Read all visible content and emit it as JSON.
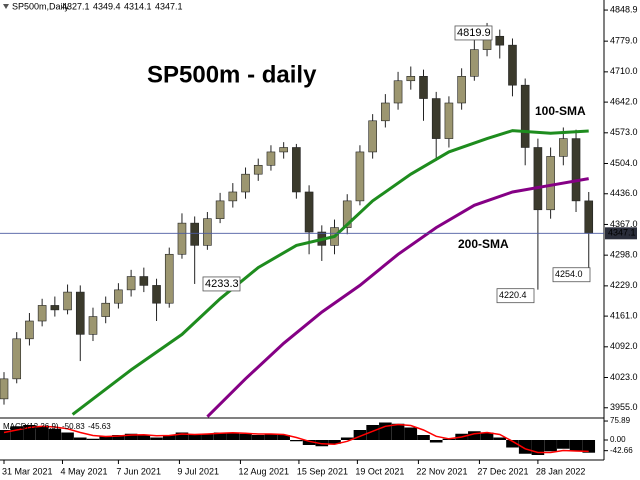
{
  "chart_data": [
    {
      "type": "candlestick",
      "title": "SP500m - daily",
      "symbol": "SP500m,Daily",
      "ohlc": [
        4327.1,
        4349.4,
        4314.1,
        4347.1
      ],
      "last_price": 4347.1,
      "x": [
        0,
        5,
        10,
        15,
        20,
        25,
        30,
        35,
        40,
        45,
        50,
        55,
        60,
        65,
        70,
        75,
        80,
        85,
        90,
        95,
        100,
        105,
        110,
        115,
        120,
        125,
        130,
        135,
        140,
        145,
        150,
        155,
        160,
        165,
        170,
        175,
        180,
        185,
        190,
        195,
        200,
        205,
        210,
        215,
        220,
        225,
        230
      ],
      "open": [
        3975,
        4020,
        4110,
        4150,
        4185,
        4175,
        4215,
        4120,
        4160,
        4190,
        4220,
        4250,
        4230,
        4190,
        4300,
        4370,
        4320,
        4380,
        4420,
        4440,
        4480,
        4500,
        4530,
        4540,
        4440,
        4350,
        4320,
        4360,
        4420,
        4530,
        4600,
        4640,
        4690,
        4700,
        4650,
        4560,
        4640,
        4700,
        4760,
        4790,
        4770,
        4680,
        4540,
        4400,
        4520,
        4560,
        4420
      ],
      "high": [
        4035,
        4125,
        4168,
        4200,
        4205,
        4232,
        4230,
        4180,
        4205,
        4235,
        4265,
        4270,
        4245,
        4315,
        4392,
        4385,
        4395,
        4438,
        4460,
        4495,
        4515,
        4545,
        4552,
        4548,
        4455,
        4365,
        4378,
        4435,
        4545,
        4615,
        4660,
        4710,
        4722,
        4715,
        4665,
        4655,
        4718,
        4790,
        4819.9,
        4805,
        4785,
        4695,
        4560,
        4540,
        4585,
        4580,
        4440
      ],
      "low": [
        3962,
        4010,
        4095,
        4138,
        4160,
        4165,
        4060,
        4105,
        4145,
        4178,
        4205,
        4215,
        4150,
        4180,
        4290,
        4233.3,
        4310,
        4370,
        4405,
        4425,
        4465,
        4488,
        4515,
        4425,
        4300,
        4285,
        4300,
        4345,
        4410,
        4515,
        4585,
        4625,
        4670,
        4600,
        4510,
        4540,
        4625,
        4690,
        4745,
        4740,
        4655,
        4500,
        4220.4,
        4380,
        4500,
        4395,
        4254.0
      ],
      "close": [
        4020,
        4110,
        4150,
        4185,
        4175,
        4215,
        4120,
        4160,
        4190,
        4220,
        4250,
        4230,
        4190,
        4300,
        4370,
        4320,
        4380,
        4420,
        4440,
        4480,
        4500,
        4530,
        4540,
        4440,
        4350,
        4320,
        4360,
        4420,
        4530,
        4600,
        4640,
        4690,
        4700,
        4650,
        4560,
        4640,
        4700,
        4760,
        4790,
        4770,
        4680,
        4540,
        4400,
        4520,
        4560,
        4420,
        4347.1
      ],
      "up_color": "#9c9670",
      "down_color": "#3b3a2c",
      "xlim": [
        0,
        236
      ],
      "ylim": [
        3932,
        4867
      ],
      "xticks": [
        {
          "value": 0,
          "label": "31 Mar 2021"
        },
        {
          "value": 23,
          "label": "4 May 2021"
        },
        {
          "value": 45,
          "label": "7 Jun 2021"
        },
        {
          "value": 69,
          "label": "9 Jul 2021"
        },
        {
          "value": 93,
          "label": "12 Aug 2021"
        },
        {
          "value": 116,
          "label": "15 Sep 2021"
        },
        {
          "value": 139,
          "label": "19 Oct 2021"
        },
        {
          "value": 163,
          "label": "22 Nov 2021"
        },
        {
          "value": 187,
          "label": "27 Dec 2021"
        },
        {
          "value": 210,
          "label": "28 Jan 2022"
        }
      ],
      "yticks": [
        4848.9,
        {
          "value": 4779,
          "label": "4779.0"
        },
        {
          "value": 4710,
          "label": "4710.0"
        },
        {
          "value": 4642,
          "label": "4642.0"
        },
        {
          "value": 4573,
          "label": "4573.0"
        },
        {
          "value": 4504,
          "label": "4504.0"
        },
        {
          "value": 4436,
          "label": "4436.0"
        },
        {
          "value": 4367,
          "label": "4367.0"
        },
        {
          "value": 4298,
          "label": "4298.0"
        },
        {
          "value": 4229,
          "label": "4229.0"
        },
        {
          "value": 4161,
          "label": "4161.0"
        },
        {
          "value": 4092,
          "label": "4092.0"
        },
        {
          "value": 4023,
          "label": "4023.0"
        },
        {
          "value": 3955,
          "label": "3955.0"
        }
      ],
      "series": [
        {
          "name": "100-SMA",
          "color": "#1e8c1e",
          "x": [
            27,
            50,
            70,
            85,
            100,
            115,
            130,
            145,
            160,
            175,
            190,
            200,
            215,
            230
          ],
          "values": [
            3940,
            4040,
            4120,
            4200,
            4270,
            4320,
            4340,
            4420,
            4480,
            4530,
            4560,
            4578,
            4572,
            4577
          ]
        },
        {
          "name": "200-SMA",
          "color": "#850085",
          "x": [
            80,
            95,
            110,
            125,
            140,
            155,
            170,
            185,
            200,
            215,
            230
          ],
          "values": [
            3935,
            4020,
            4100,
            4170,
            4230,
            4300,
            4360,
            4410,
            4440,
            4455,
            4470
          ]
        }
      ],
      "annotations": [
        {
          "value": 4819.9,
          "label": "4819.9"
        },
        {
          "value": 4233.3,
          "label": "4233.3"
        },
        {
          "value": 4220.4,
          "label": "4220.4"
        },
        {
          "value": 4254.0,
          "label": "4254.0"
        }
      ]
    },
    {
      "type": "macd",
      "label": "MACD(12,26,9)",
      "values": [
        40,
        55,
        60,
        55,
        45,
        30,
        10,
        5,
        15,
        20,
        25,
        20,
        10,
        20,
        30,
        20,
        25,
        30,
        30,
        25,
        20,
        25,
        20,
        -5,
        -20,
        -25,
        -15,
        10,
        40,
        60,
        70,
        65,
        50,
        20,
        -10,
        5,
        25,
        35,
        30,
        10,
        -30,
        -55,
        -60,
        -45,
        -35,
        -45,
        -50.83
      ],
      "signal": [
        30,
        40,
        50,
        55,
        52,
        45,
        30,
        18,
        14,
        16,
        20,
        21,
        17,
        18,
        24,
        22,
        24,
        27,
        29,
        27,
        24,
        24,
        22,
        10,
        -5,
        -15,
        -17,
        -5,
        15,
        35,
        55,
        62,
        58,
        40,
        15,
        5,
        12,
        25,
        30,
        22,
        -5,
        -35,
        -50,
        -50,
        -42,
        -44,
        -45.63
      ],
      "color": "#000000",
      "signal_color": "#ff0000",
      "ylim": [
        -80,
        76
      ],
      "yticks": [
        75.89,
        {
          "value": 0,
          "label": "0.00"
        },
        -42.66
      ]
    }
  ]
}
